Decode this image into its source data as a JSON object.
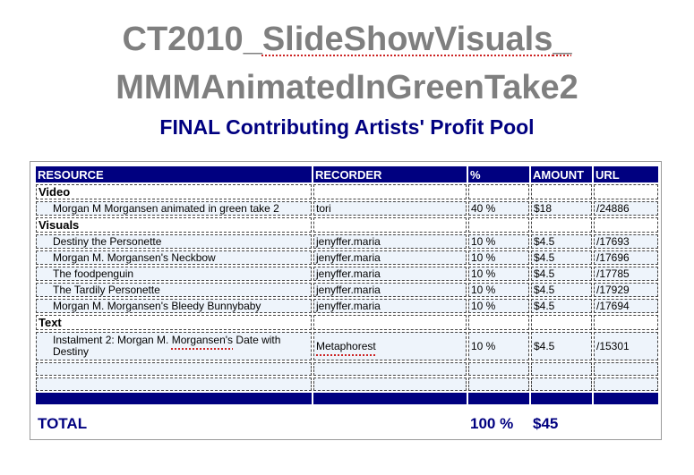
{
  "title": {
    "line1_prefix": "CT2010_",
    "line1_spelled": "SlideShowVisuals",
    "line1_suffix": "_",
    "line2": "MMMAnimatedInGreenTake2"
  },
  "subtitle": "FINAL Contributing Artists' Profit Pool",
  "table": {
    "headers": {
      "resource": "RESOURCE",
      "recorder": "RECORDER",
      "percent": "%",
      "amount": "AMOUNT",
      "url": "URL"
    },
    "sections": [
      {
        "category": "Video",
        "items": [
          {
            "resource_pre": "Morgan M ",
            "resource_spell": "Morgansen",
            "resource_post": " animated in green take 2",
            "recorder": "tori",
            "percent": "40 %",
            "amount": "$18",
            "url": "/24886"
          }
        ]
      },
      {
        "category": "Visuals",
        "items": [
          {
            "resource_pre": "Destiny the ",
            "resource_spell": "Personette",
            "resource_post": "",
            "recorder": "jenyffer.maria",
            "percent": "10 %",
            "amount": "$4.5",
            "url": "/17693"
          },
          {
            "resource_pre": "Morgan M. ",
            "resource_spell": "Morgansen's",
            "resource_post": " Neckbow",
            "recorder": "jenyffer.maria",
            "percent": "10 %",
            "amount": "$4.5",
            "url": "/17696"
          },
          {
            "resource_pre": "The ",
            "resource_spell": "foodpenguin",
            "resource_post": "",
            "recorder": "jenyffer.maria",
            "percent": "10 %",
            "amount": "$4.5",
            "url": "/17785"
          },
          {
            "resource_pre": "The Tardily ",
            "resource_spell": "Personette",
            "resource_post": "",
            "recorder": "jenyffer.maria",
            "percent": "10 %",
            "amount": "$4.5",
            "url": "/17929"
          },
          {
            "resource_pre": "Morgan M. ",
            "resource_spell": "Morgansen's Bleedy Bunnybaby",
            "resource_post": "",
            "recorder": "jenyffer.maria",
            "percent": "10 %",
            "amount": "$4.5",
            "url": "/17694"
          }
        ]
      },
      {
        "category": "Text",
        "items": [
          {
            "resource_pre": "Instalment 2: Morgan M. ",
            "resource_spell": "Morgansen's",
            "resource_post": " Date with Destiny",
            "recorder": "Metaphorest",
            "percent": "10 %",
            "amount": "$4.5",
            "url": "/15301"
          }
        ]
      }
    ],
    "total": {
      "label": "TOTAL",
      "percent": "100 %",
      "amount": "$45"
    }
  }
}
